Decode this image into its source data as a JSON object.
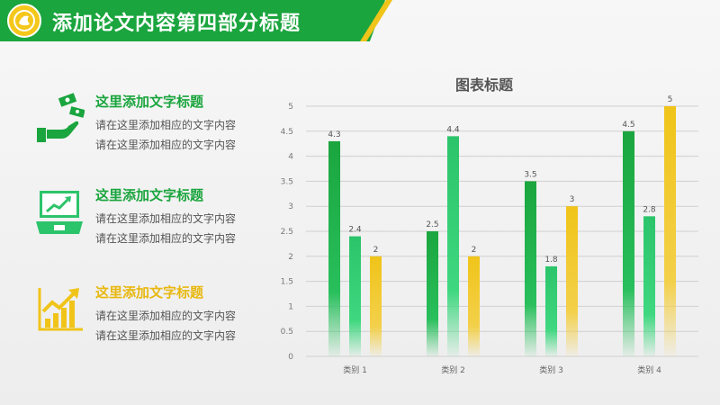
{
  "header": {
    "title": "添加论文内容第四部分标题"
  },
  "colors": {
    "green": "#1ba53e",
    "yellow": "#f0c419"
  },
  "items": [
    {
      "title": "这里添加文字标题",
      "lines": [
        "请在这里添加相应的文字内容",
        "请在这里添加相应的文字内容"
      ],
      "icon": "money-hand-icon",
      "title_color": "#1ba53e"
    },
    {
      "title": "这里添加文字标题",
      "lines": [
        "请在这里添加相应的文字内容",
        "请在这里添加相应的文字内容"
      ],
      "icon": "laptop-chart-icon",
      "title_color": "#1ba53e"
    },
    {
      "title": "这里添加文字标题",
      "lines": [
        "请在这里添加相应的文字内容",
        "请在这里添加相应的文字内容"
      ],
      "icon": "growth-chart-icon",
      "title_color": "#e8b810"
    }
  ],
  "chart_data": {
    "type": "bar",
    "title": "图表标题",
    "categories": [
      "类别 1",
      "类别 2",
      "类别 3",
      "类别 4"
    ],
    "series": [
      {
        "values": [
          4.3,
          2.5,
          3.5,
          4.5
        ],
        "color": "#1ba53e"
      },
      {
        "values": [
          2.4,
          4.4,
          1.8,
          2.8
        ],
        "color": "#2cc46a"
      },
      {
        "values": [
          2,
          2,
          3,
          5
        ],
        "color": "#f0c419"
      }
    ],
    "ylim": [
      0,
      5
    ],
    "yticks": [
      "0",
      "0.5",
      "1",
      "1.5",
      "2",
      "2.5",
      "3",
      "3.5",
      "4",
      "4.5",
      "5"
    ],
    "grid": true,
    "data_labels": true
  }
}
